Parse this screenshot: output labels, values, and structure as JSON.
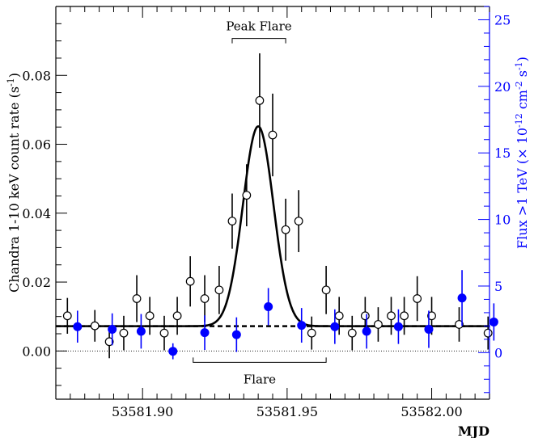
{
  "chart_data": {
    "type": "scatter",
    "xlabel": "MJD",
    "ylabel_left": "Chandra 1-10 keV count rate (s",
    "ylabel_left_sup": "-1",
    "ylabel_left_end": ")",
    "ylabel_right_parts": [
      {
        "t": "Flux >1 TeV (",
        "s": false
      },
      {
        "t": "×",
        "s": false
      },
      {
        "t": " 10",
        "s": false
      },
      {
        "t": "-12",
        "s": true
      },
      {
        "t": " cm",
        "s": false
      },
      {
        "t": "-2",
        "s": true
      },
      {
        "t": " s",
        "s": false
      },
      {
        "t": "-1",
        "s": true
      },
      {
        "t": ")",
        "s": false
      }
    ],
    "xlim": [
      53581.87,
      53582.02
    ],
    "ylim_left": [
      -0.014,
      0.1
    ],
    "ylim_right": [
      -3.5,
      26
    ],
    "x_ticks": [
      53581.9,
      53581.95,
      53582.0
    ],
    "x_tick_labels": [
      "53581.90",
      "53581.95",
      "53582.00"
    ],
    "y_left_ticks": [
      0.0,
      0.02,
      0.04,
      0.06,
      0.08
    ],
    "y_left_tick_labels": [
      "0.00",
      "0.02",
      "0.04",
      "0.06",
      "0.08"
    ],
    "y_right_ticks": [
      0,
      5,
      10,
      15,
      20,
      25
    ],
    "y_right_tick_labels": [
      "0",
      "5",
      "10",
      "15",
      "20",
      "25"
    ],
    "colors": {
      "xray": "#000000",
      "tev": "#0000ff",
      "axis_right": "#0000ff"
    },
    "annotations": {
      "peak_flare": {
        "label": "Peak Flare",
        "x_start": 53581.931,
        "x_end": 53581.9495,
        "y": 0.0907
      },
      "flare": {
        "label": "Flare",
        "x_start": 53581.9175,
        "x_end": 53581.9635,
        "y": -0.0033
      }
    },
    "series": [
      {
        "marker": "open-circle",
        "axis": "left",
        "points": [
          {
            "x": 53581.874,
            "y": 0.0102,
            "err": 0.0052
          },
          {
            "x": 53581.8835,
            "y": 0.0073,
            "err": 0.0046
          },
          {
            "x": 53581.8885,
            "y": 0.0027,
            "err": 0.0048
          },
          {
            "x": 53581.8935,
            "y": 0.0052,
            "err": 0.005
          },
          {
            "x": 53581.898,
            "y": 0.0152,
            "err": 0.0068
          },
          {
            "x": 53581.9025,
            "y": 0.0102,
            "err": 0.0055
          },
          {
            "x": 53581.9075,
            "y": 0.0052,
            "err": 0.005
          },
          {
            "x": 53581.912,
            "y": 0.0102,
            "err": 0.0055
          },
          {
            "x": 53581.9165,
            "y": 0.0202,
            "err": 0.0073
          },
          {
            "x": 53581.9215,
            "y": 0.0152,
            "err": 0.0068
          },
          {
            "x": 53581.9265,
            "y": 0.0177,
            "err": 0.007
          },
          {
            "x": 53581.931,
            "y": 0.0377,
            "err": 0.008
          },
          {
            "x": 53581.936,
            "y": 0.0452,
            "err": 0.009
          },
          {
            "x": 53581.9405,
            "y": 0.0727,
            "err": 0.0137
          },
          {
            "x": 53581.945,
            "y": 0.0627,
            "err": 0.012
          },
          {
            "x": 53581.9495,
            "y": 0.0352,
            "err": 0.009
          },
          {
            "x": 53581.954,
            "y": 0.0377,
            "err": 0.009
          },
          {
            "x": 53581.9585,
            "y": 0.0052,
            "err": 0.0048
          },
          {
            "x": 53581.9635,
            "y": 0.0177,
            "err": 0.007
          },
          {
            "x": 53581.968,
            "y": 0.0102,
            "err": 0.0055
          },
          {
            "x": 53581.9725,
            "y": 0.0052,
            "err": 0.005
          },
          {
            "x": 53581.977,
            "y": 0.0102,
            "err": 0.0055
          },
          {
            "x": 53581.9815,
            "y": 0.0077,
            "err": 0.005
          },
          {
            "x": 53581.986,
            "y": 0.0102,
            "err": 0.0055
          },
          {
            "x": 53581.9905,
            "y": 0.0102,
            "err": 0.0055
          },
          {
            "x": 53581.995,
            "y": 0.0152,
            "err": 0.0065
          },
          {
            "x": 53582.0,
            "y": 0.0102,
            "err": 0.0055
          },
          {
            "x": 53582.0095,
            "y": 0.0077,
            "err": 0.005
          },
          {
            "x": 53582.0195,
            "y": 0.0052,
            "err": 0.0048
          }
        ]
      },
      {
        "marker": "filled-circle",
        "axis": "right",
        "points": [
          {
            "x": 53581.8775,
            "y": 1.95,
            "err": 1.2
          },
          {
            "x": 53581.8895,
            "y": 1.75,
            "err": 1.2
          },
          {
            "x": 53581.8995,
            "y": 1.6,
            "err": 1.3
          },
          {
            "x": 53581.9105,
            "y": 0.1,
            "err": 0.6
          },
          {
            "x": 53581.9215,
            "y": 1.5,
            "err": 1.3
          },
          {
            "x": 53581.9325,
            "y": 1.35,
            "err": 1.3
          },
          {
            "x": 53581.9435,
            "y": 3.45,
            "err": 1.4
          },
          {
            "x": 53581.955,
            "y": 2.05,
            "err": 1.3
          },
          {
            "x": 53581.9665,
            "y": 1.95,
            "err": 1.3
          },
          {
            "x": 53581.9775,
            "y": 1.6,
            "err": 1.3
          },
          {
            "x": 53581.9885,
            "y": 1.95,
            "err": 1.3
          },
          {
            "x": 53581.999,
            "y": 1.75,
            "err": 1.4
          },
          {
            "x": 53582.0105,
            "y": 4.1,
            "err": 2.1
          },
          {
            "x": 53582.0215,
            "y": 2.3,
            "err": 1.4
          }
        ]
      }
    ],
    "fit_model": {
      "type": "gaussian+constant",
      "baseline": 0.0072,
      "amplitude": 0.058,
      "center": 53581.94,
      "sigma": 0.0053
    }
  }
}
